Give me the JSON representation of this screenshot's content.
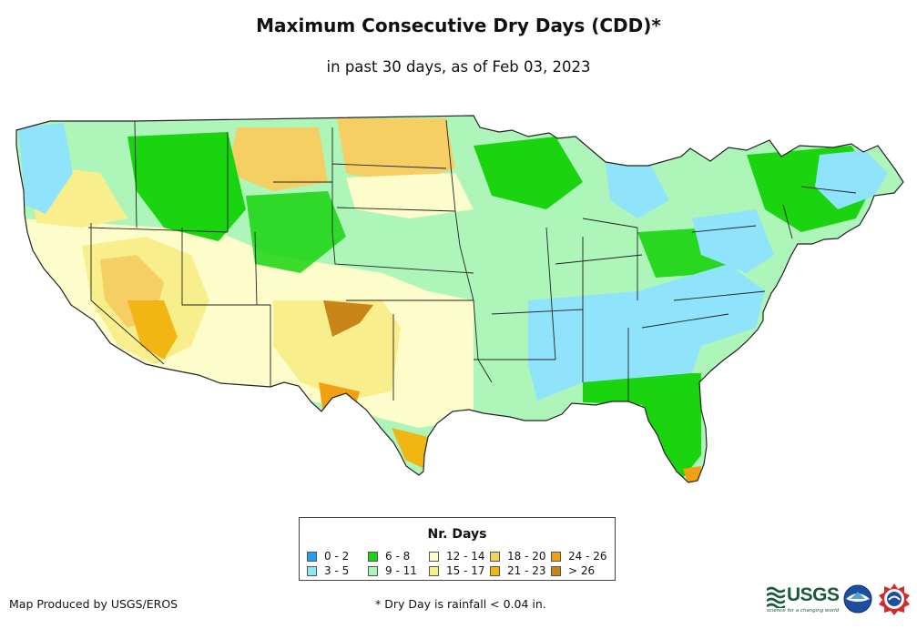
{
  "title": "Maximum Consecutive Dry Days (CDD)*",
  "subtitle": "in past 30 days, as of Feb 03, 2023",
  "legend": {
    "title": "Nr. Days",
    "items": [
      {
        "label": "0 - 2",
        "color": "#1fa0f5"
      },
      {
        "label": "3 - 5",
        "color": "#8fe3fb"
      },
      {
        "label": "6 - 8",
        "color": "#19d40f"
      },
      {
        "label": "9 - 11",
        "color": "#aef5b9"
      },
      {
        "label": "12 - 14",
        "color": "#fdfdcc"
      },
      {
        "label": "15 - 17",
        "color": "#f8ef8c"
      },
      {
        "label": "18 - 20",
        "color": "#f6cf64"
      },
      {
        "label": "21 - 23",
        "color": "#f2b614"
      },
      {
        "label": "24 - 26",
        "color": "#f0a010"
      },
      {
        "label": "> 26",
        "color": "#c9841a"
      }
    ]
  },
  "credit": "Map Produced by USGS/EROS",
  "footnote": "* Dry Day is rainfall < 0.04 in.",
  "logos": {
    "usgs": "USGS",
    "usgs_tagline": "science for a changing world",
    "noaa_icon": "noaa-logo-icon",
    "nws_icon": "national-weather-service-logo-icon"
  },
  "colors": {
    "state_border": "#222222",
    "land_base": "#aef5b9"
  }
}
